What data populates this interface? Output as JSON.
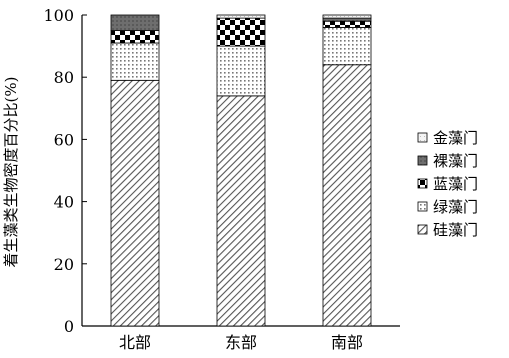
{
  "chart_data": {
    "type": "bar",
    "stacked": true,
    "categories": [
      "北部",
      "东部",
      "南部"
    ],
    "ylabel": "着生藻类生物密度百分比(%)",
    "xlabel": "",
    "title": "",
    "ylim": [
      0,
      100
    ],
    "yticks": [
      0,
      20,
      40,
      60,
      80,
      100
    ],
    "grid": false,
    "legend_position": "right",
    "series": [
      {
        "name": "硅藻门",
        "values": [
          79,
          74,
          84
        ],
        "pattern": "diagonal"
      },
      {
        "name": "绿藻门",
        "values": [
          12,
          16,
          12
        ],
        "pattern": "grid"
      },
      {
        "name": "蓝藻门",
        "values": [
          4,
          9,
          2
        ],
        "pattern": "checker"
      },
      {
        "name": "裸藻门",
        "values": [
          5,
          0,
          1
        ],
        "pattern": "dark"
      },
      {
        "name": "金藻门",
        "values": [
          0,
          1,
          1
        ],
        "pattern": "light"
      }
    ],
    "legend_order": [
      "金藻门",
      "裸藻门",
      "蓝藻门",
      "绿藻门",
      "硅藻门"
    ]
  }
}
